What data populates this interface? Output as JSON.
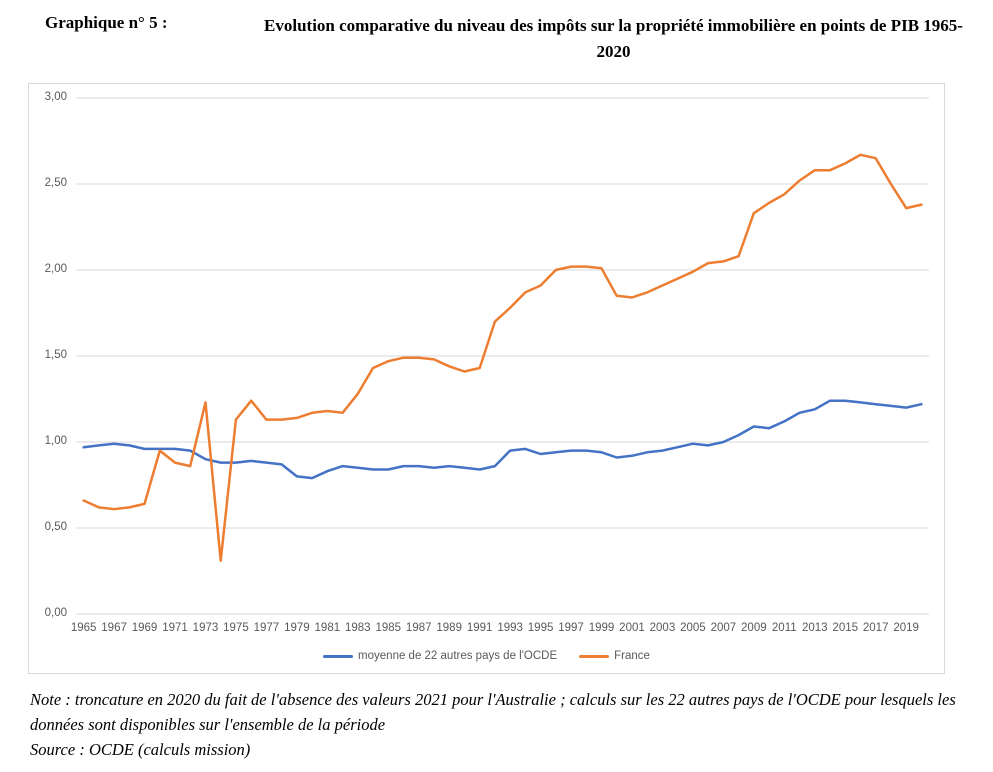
{
  "header": {
    "figure_label": "Graphique n° 5 :",
    "title": "Evolution comparative du niveau des impôts sur la propriété immobilière en points de PIB 1965-2020"
  },
  "chart_data": {
    "type": "line",
    "title": "Evolution comparative du niveau des impôts sur la propriété immobilière en points de PIB 1965-2020",
    "xlabel": "",
    "ylabel": "points de PIB",
    "ylim": [
      0,
      3
    ],
    "grid": "horizontal",
    "legend_position": "bottom",
    "gridline_color": "#D9D9D9",
    "axis_label_color": "#595959",
    "y_tick_labels": [
      "0,00",
      "0,50",
      "1,00",
      "1,50",
      "2,00",
      "2,50",
      "3,00"
    ],
    "x_tick_labels": [
      "1965",
      "1967",
      "1969",
      "1971",
      "1973",
      "1975",
      "1977",
      "1979",
      "1981",
      "1983",
      "1985",
      "1987",
      "1989",
      "1991",
      "1993",
      "1995",
      "1997",
      "1999",
      "2001",
      "2003",
      "2005",
      "2007",
      "2009",
      "2011",
      "2013",
      "2015",
      "2017",
      "2019"
    ],
    "x": [
      1965,
      1966,
      1967,
      1968,
      1969,
      1970,
      1971,
      1972,
      1973,
      1974,
      1975,
      1976,
      1977,
      1978,
      1979,
      1980,
      1981,
      1982,
      1983,
      1984,
      1985,
      1986,
      1987,
      1988,
      1989,
      1990,
      1991,
      1992,
      1993,
      1994,
      1995,
      1996,
      1997,
      1998,
      1999,
      2000,
      2001,
      2002,
      2003,
      2004,
      2005,
      2006,
      2007,
      2008,
      2009,
      2010,
      2011,
      2012,
      2013,
      2014,
      2015,
      2016,
      2017,
      2018,
      2019,
      2020
    ],
    "series": [
      {
        "name": "moyenne de 22 autres pays de l'OCDE",
        "color": "#4472C4",
        "values": [
          0.97,
          0.98,
          0.99,
          0.98,
          0.96,
          0.96,
          0.96,
          0.95,
          0.9,
          0.88,
          0.88,
          0.89,
          0.88,
          0.87,
          0.8,
          0.79,
          0.83,
          0.86,
          0.85,
          0.84,
          0.84,
          0.86,
          0.86,
          0.85,
          0.86,
          0.85,
          0.84,
          0.86,
          0.95,
          0.96,
          0.93,
          0.94,
          0.95,
          0.95,
          0.94,
          0.91,
          0.92,
          0.94,
          0.95,
          0.97,
          0.99,
          0.98,
          1.0,
          1.04,
          1.09,
          1.08,
          1.12,
          1.17,
          1.19,
          1.24,
          1.24,
          1.23,
          1.22,
          1.21,
          1.2,
          1.22
        ]
      },
      {
        "name": "France",
        "color": "#ED7D31",
        "values": [
          0.66,
          0.62,
          0.61,
          0.62,
          0.64,
          0.95,
          0.88,
          0.86,
          1.23,
          0.31,
          1.13,
          1.24,
          1.13,
          1.13,
          1.14,
          1.17,
          1.18,
          1.17,
          1.28,
          1.43,
          1.47,
          1.49,
          1.49,
          1.48,
          1.44,
          1.41,
          1.43,
          1.7,
          1.78,
          1.87,
          1.91,
          2.0,
          2.02,
          2.02,
          2.01,
          1.85,
          1.84,
          1.87,
          1.91,
          1.95,
          1.99,
          2.04,
          2.05,
          2.08,
          2.33,
          2.39,
          2.44,
          2.52,
          2.58,
          2.58,
          2.62,
          2.67,
          2.65,
          2.5,
          2.36,
          2.38
        ]
      }
    ]
  },
  "notes": {
    "note": "Note : troncature en 2020 du fait de l'absence des valeurs 2021 pour l'Australie ; calculs sur les 22 autres pays de l'OCDE pour lesquels les données sont disponibles sur l'ensemble de la période",
    "source": "Source : OCDE (calculs mission)"
  }
}
